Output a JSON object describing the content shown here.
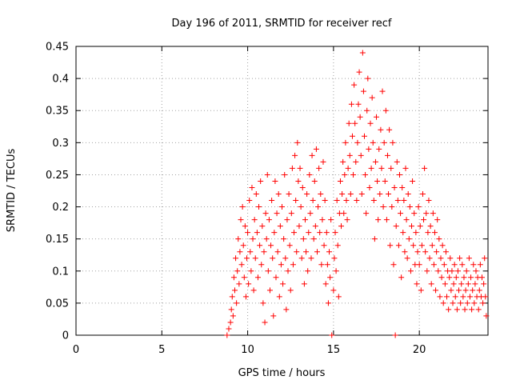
{
  "chart_data": {
    "type": "scatter",
    "title": "Day 196 of 2011, SRMTID for receiver recf",
    "xlabel": "GPS time / hours",
    "ylabel": "SRMTID / TECUs",
    "xlim": [
      0,
      24
    ],
    "ylim": [
      0,
      0.45
    ],
    "x_ticks": [
      0,
      5,
      10,
      15,
      20
    ],
    "x_tick_labels": [
      "0",
      "5",
      "10",
      "15",
      "20"
    ],
    "y_ticks": [
      0,
      0.05,
      0.1,
      0.15,
      0.2,
      0.25,
      0.3,
      0.35,
      0.4,
      0.45
    ],
    "y_tick_labels": [
      "0",
      "0.05",
      "0.1",
      "0.15",
      "0.2",
      "0.25",
      "0.3",
      "0.35",
      "0.4",
      "0.45"
    ],
    "grid": true,
    "marker": "+",
    "marker_color": "#ff0000",
    "series": [
      {
        "name": "SRMTID",
        "points": [
          [
            8.8,
            0.0
          ],
          [
            8.9,
            0.01
          ],
          [
            9.0,
            0.02
          ],
          [
            9.05,
            0.04
          ],
          [
            9.1,
            0.06
          ],
          [
            9.15,
            0.03
          ],
          [
            9.2,
            0.09
          ],
          [
            9.25,
            0.07
          ],
          [
            9.3,
            0.12
          ],
          [
            9.35,
            0.05
          ],
          [
            9.4,
            0.1
          ],
          [
            9.45,
            0.15
          ],
          [
            9.5,
            0.08
          ],
          [
            9.55,
            0.13
          ],
          [
            9.6,
            0.18
          ],
          [
            9.65,
            0.11
          ],
          [
            9.7,
            0.2
          ],
          [
            9.75,
            0.14
          ],
          [
            9.8,
            0.09
          ],
          [
            9.85,
            0.17
          ],
          [
            9.9,
            0.06
          ],
          [
            9.95,
            0.12
          ],
          [
            10.0,
            0.16
          ],
          [
            10.05,
            0.08
          ],
          [
            10.1,
            0.21
          ],
          [
            10.15,
            0.13
          ],
          [
            10.2,
            0.1
          ],
          [
            10.25,
            0.23
          ],
          [
            10.3,
            0.15
          ],
          [
            10.35,
            0.07
          ],
          [
            10.4,
            0.18
          ],
          [
            10.45,
            0.12
          ],
          [
            10.5,
            0.22
          ],
          [
            10.55,
            0.16
          ],
          [
            10.6,
            0.09
          ],
          [
            10.65,
            0.2
          ],
          [
            10.7,
            0.14
          ],
          [
            10.75,
            0.24
          ],
          [
            10.8,
            0.11
          ],
          [
            10.85,
            0.17
          ],
          [
            10.9,
            0.05
          ],
          [
            10.95,
            0.13
          ],
          [
            11.0,
            0.02
          ],
          [
            11.05,
            0.19
          ],
          [
            11.1,
            0.15
          ],
          [
            11.15,
            0.25
          ],
          [
            11.2,
            0.1
          ],
          [
            11.25,
            0.18
          ],
          [
            11.3,
            0.07
          ],
          [
            11.35,
            0.14
          ],
          [
            11.4,
            0.21
          ],
          [
            11.45,
            0.12
          ],
          [
            11.5,
            0.03
          ],
          [
            11.55,
            0.16
          ],
          [
            11.6,
            0.24
          ],
          [
            11.65,
            0.09
          ],
          [
            11.7,
            0.19
          ],
          [
            11.75,
            0.13
          ],
          [
            11.8,
            0.22
          ],
          [
            11.85,
            0.06
          ],
          [
            11.9,
            0.17
          ],
          [
            11.95,
            0.11
          ],
          [
            12.0,
            0.2
          ],
          [
            12.05,
            0.08
          ],
          [
            12.1,
            0.15
          ],
          [
            12.15,
            0.25
          ],
          [
            12.2,
            0.12
          ],
          [
            12.25,
            0.04
          ],
          [
            12.3,
            0.18
          ],
          [
            12.35,
            0.1
          ],
          [
            12.4,
            0.22
          ],
          [
            12.45,
            0.14
          ],
          [
            12.5,
            0.07
          ],
          [
            12.55,
            0.19
          ],
          [
            12.6,
            0.26
          ],
          [
            12.65,
            0.11
          ],
          [
            12.7,
            0.16
          ],
          [
            12.75,
            0.28
          ],
          [
            12.8,
            0.21
          ],
          [
            12.85,
            0.13
          ],
          [
            12.9,
            0.3
          ],
          [
            12.95,
            0.24
          ],
          [
            13.0,
            0.17
          ],
          [
            13.05,
            0.26
          ],
          [
            13.1,
            0.2
          ],
          [
            13.15,
            0.12
          ],
          [
            13.2,
            0.23
          ],
          [
            13.25,
            0.15
          ],
          [
            13.3,
            0.08
          ],
          [
            13.35,
            0.18
          ],
          [
            13.4,
            0.13
          ],
          [
            13.45,
            0.22
          ],
          [
            13.5,
            0.1
          ],
          [
            13.55,
            0.16
          ],
          [
            13.6,
            0.25
          ],
          [
            13.65,
            0.19
          ],
          [
            13.7,
            0.12
          ],
          [
            13.75,
            0.28
          ],
          [
            13.8,
            0.21
          ],
          [
            13.85,
            0.15
          ],
          [
            13.9,
            0.24
          ],
          [
            13.95,
            0.17
          ],
          [
            14.0,
            0.29
          ],
          [
            14.05,
            0.13
          ],
          [
            14.1,
            0.2
          ],
          [
            14.15,
            0.26
          ],
          [
            14.2,
            0.16
          ],
          [
            14.25,
            0.22
          ],
          [
            14.3,
            0.11
          ],
          [
            14.35,
            0.18
          ],
          [
            14.4,
            0.27
          ],
          [
            14.45,
            0.14
          ],
          [
            14.5,
            0.21
          ],
          [
            14.55,
            0.08
          ],
          [
            14.6,
            0.16
          ],
          [
            14.65,
            0.11
          ],
          [
            14.7,
            0.05
          ],
          [
            14.75,
            0.13
          ],
          [
            14.8,
            0.09
          ],
          [
            14.85,
            0.18
          ],
          [
            14.9,
            0.0
          ],
          [
            15.0,
            0.07
          ],
          [
            15.05,
            0.12
          ],
          [
            15.1,
            0.16
          ],
          [
            15.15,
            0.1
          ],
          [
            15.2,
            0.21
          ],
          [
            15.25,
            0.14
          ],
          [
            15.3,
            0.06
          ],
          [
            15.35,
            0.19
          ],
          [
            15.4,
            0.24
          ],
          [
            15.45,
            0.17
          ],
          [
            15.5,
            0.22
          ],
          [
            15.55,
            0.27
          ],
          [
            15.6,
            0.19
          ],
          [
            15.65,
            0.25
          ],
          [
            15.7,
            0.3
          ],
          [
            15.75,
            0.21
          ],
          [
            15.8,
            0.18
          ],
          [
            15.85,
            0.26
          ],
          [
            15.9,
            0.33
          ],
          [
            15.95,
            0.28
          ],
          [
            16.0,
            0.22
          ],
          [
            16.05,
            0.36
          ],
          [
            16.1,
            0.31
          ],
          [
            16.15,
            0.25
          ],
          [
            16.2,
            0.39
          ],
          [
            16.25,
            0.33
          ],
          [
            16.3,
            0.27
          ],
          [
            16.35,
            0.21
          ],
          [
            16.4,
            0.3
          ],
          [
            16.45,
            0.36
          ],
          [
            16.5,
            0.41
          ],
          [
            16.55,
            0.34
          ],
          [
            16.6,
            0.28
          ],
          [
            16.65,
            0.22
          ],
          [
            16.7,
            0.44
          ],
          [
            16.75,
            0.38
          ],
          [
            16.8,
            0.31
          ],
          [
            16.85,
            0.25
          ],
          [
            16.9,
            0.19
          ],
          [
            16.95,
            0.35
          ],
          [
            17.0,
            0.4
          ],
          [
            17.05,
            0.29
          ],
          [
            17.1,
            0.23
          ],
          [
            17.15,
            0.33
          ],
          [
            17.2,
            0.26
          ],
          [
            17.25,
            0.37
          ],
          [
            17.3,
            0.3
          ],
          [
            17.35,
            0.21
          ],
          [
            17.4,
            0.15
          ],
          [
            17.45,
            0.27
          ],
          [
            17.5,
            0.34
          ],
          [
            17.55,
            0.24
          ],
          [
            17.6,
            0.18
          ],
          [
            17.65,
            0.29
          ],
          [
            17.7,
            0.22
          ],
          [
            17.75,
            0.32
          ],
          [
            17.8,
            0.26
          ],
          [
            17.85,
            0.38
          ],
          [
            17.9,
            0.2
          ],
          [
            17.95,
            0.3
          ],
          [
            18.0,
            0.24
          ],
          [
            18.05,
            0.35
          ],
          [
            18.1,
            0.18
          ],
          [
            18.15,
            0.28
          ],
          [
            18.2,
            0.22
          ],
          [
            18.25,
            0.32
          ],
          [
            18.3,
            0.14
          ],
          [
            18.35,
            0.26
          ],
          [
            18.4,
            0.2
          ],
          [
            18.45,
            0.3
          ],
          [
            18.5,
            0.11
          ],
          [
            18.55,
            0.23
          ],
          [
            18.6,
            0.0
          ],
          [
            18.65,
            0.17
          ],
          [
            18.7,
            0.27
          ],
          [
            18.75,
            0.21
          ],
          [
            18.8,
            0.14
          ],
          [
            18.85,
            0.25
          ],
          [
            18.9,
            0.19
          ],
          [
            18.95,
            0.09
          ],
          [
            19.0,
            0.23
          ],
          [
            19.05,
            0.16
          ],
          [
            19.1,
            0.21
          ],
          [
            19.15,
            0.13
          ],
          [
            19.2,
            0.26
          ],
          [
            19.25,
            0.18
          ],
          [
            19.3,
            0.12
          ],
          [
            19.35,
            0.22
          ],
          [
            19.4,
            0.15
          ],
          [
            19.45,
            0.2
          ],
          [
            19.5,
            0.1
          ],
          [
            19.55,
            0.17
          ],
          [
            19.6,
            0.24
          ],
          [
            19.65,
            0.14
          ],
          [
            19.7,
            0.19
          ],
          [
            19.75,
            0.11
          ],
          [
            19.8,
            0.16
          ],
          [
            19.85,
            0.08
          ],
          [
            19.9,
            0.13
          ],
          [
            19.95,
            0.2
          ],
          [
            20.0,
            0.11
          ],
          [
            20.05,
            0.17
          ],
          [
            20.1,
            0.07
          ],
          [
            20.15,
            0.14
          ],
          [
            20.2,
            0.22
          ],
          [
            20.25,
            0.18
          ],
          [
            20.3,
            0.26
          ],
          [
            20.35,
            0.13
          ],
          [
            20.4,
            0.19
          ],
          [
            20.45,
            0.1
          ],
          [
            20.5,
            0.16
          ],
          [
            20.55,
            0.21
          ],
          [
            20.6,
            0.12
          ],
          [
            20.65,
            0.17
          ],
          [
            20.7,
            0.08
          ],
          [
            20.75,
            0.14
          ],
          [
            20.8,
            0.19
          ],
          [
            20.85,
            0.11
          ],
          [
            20.9,
            0.16
          ],
          [
            20.95,
            0.07
          ],
          [
            21.0,
            0.13
          ],
          [
            21.05,
            0.18
          ],
          [
            21.1,
            0.1
          ],
          [
            21.15,
            0.15
          ],
          [
            21.2,
            0.06
          ],
          [
            21.25,
            0.12
          ],
          [
            21.3,
            0.09
          ],
          [
            21.35,
            0.14
          ],
          [
            21.4,
            0.05
          ],
          [
            21.45,
            0.11
          ],
          [
            21.5,
            0.08
          ],
          [
            21.55,
            0.13
          ],
          [
            21.6,
            0.06
          ],
          [
            21.65,
            0.1
          ],
          [
            21.7,
            0.04
          ],
          [
            21.75,
            0.09
          ],
          [
            21.8,
            0.12
          ],
          [
            21.85,
            0.07
          ],
          [
            21.9,
            0.1
          ],
          [
            21.95,
            0.05
          ],
          [
            22.0,
            0.08
          ],
          [
            22.05,
            0.11
          ],
          [
            22.1,
            0.06
          ],
          [
            22.15,
            0.09
          ],
          [
            22.2,
            0.04
          ],
          [
            22.25,
            0.1
          ],
          [
            22.3,
            0.07
          ],
          [
            22.35,
            0.12
          ],
          [
            22.4,
            0.05
          ],
          [
            22.45,
            0.08
          ],
          [
            22.5,
            0.11
          ],
          [
            22.55,
            0.06
          ],
          [
            22.6,
            0.09
          ],
          [
            22.65,
            0.04
          ],
          [
            22.7,
            0.07
          ],
          [
            22.75,
            0.1
          ],
          [
            22.8,
            0.05
          ],
          [
            22.85,
            0.08
          ],
          [
            22.9,
            0.12
          ],
          [
            22.95,
            0.06
          ],
          [
            23.0,
            0.09
          ],
          [
            23.05,
            0.04
          ],
          [
            23.1,
            0.07
          ],
          [
            23.15,
            0.11
          ],
          [
            23.2,
            0.05
          ],
          [
            23.25,
            0.08
          ],
          [
            23.3,
            0.1
          ],
          [
            23.35,
            0.06
          ],
          [
            23.4,
            0.09
          ],
          [
            23.45,
            0.04
          ],
          [
            23.5,
            0.07
          ],
          [
            23.55,
            0.11
          ],
          [
            23.6,
            0.06
          ],
          [
            23.65,
            0.09
          ],
          [
            23.7,
            0.05
          ],
          [
            23.75,
            0.08
          ],
          [
            23.8,
            0.12
          ],
          [
            23.85,
            0.06
          ],
          [
            23.9,
            0.03
          ]
        ]
      }
    ]
  }
}
